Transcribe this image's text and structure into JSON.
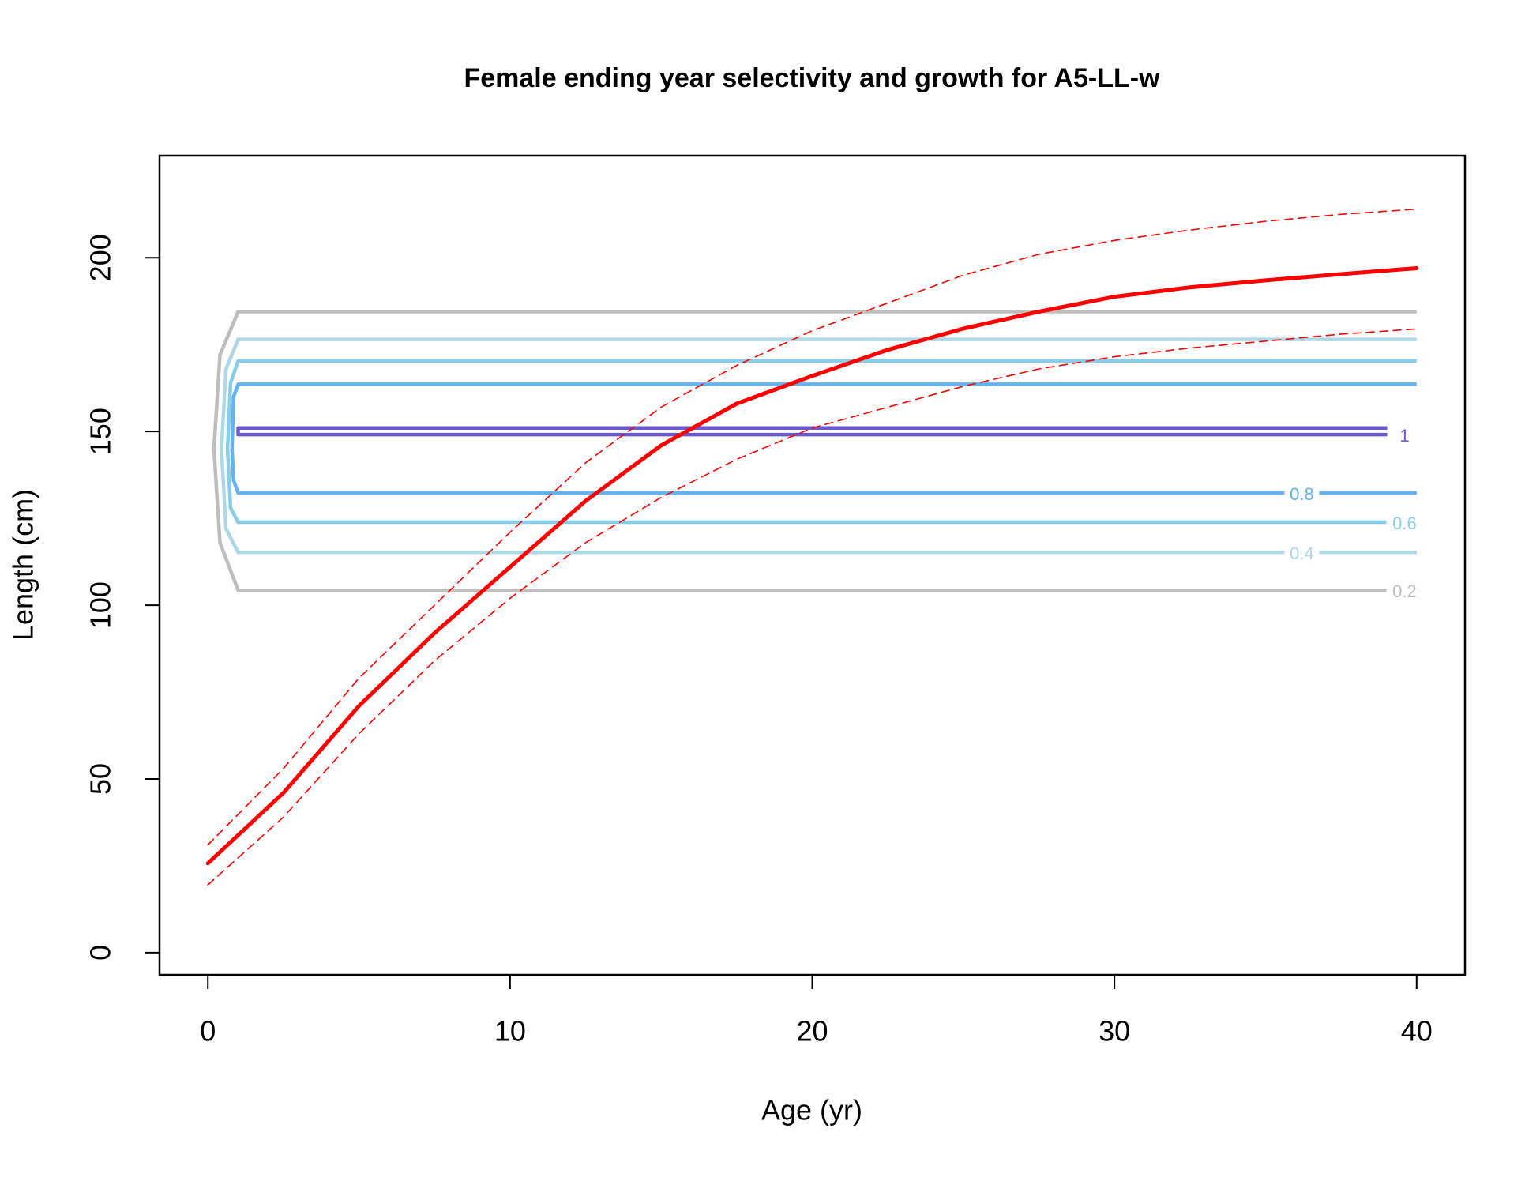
{
  "chart_data": {
    "type": "line",
    "title": "Female ending year selectivity and growth for A5-LL-w",
    "x_label": "Age (yr)",
    "y_label": "Length (cm)",
    "xlim": [
      -1.6,
      41.6
    ],
    "ylim": [
      -6.4,
      229.4
    ],
    "xticks": [
      0,
      10,
      20,
      30,
      40
    ],
    "yticks": [
      0,
      50,
      100,
      150,
      200
    ],
    "contours": [
      {
        "level": 0.2,
        "color": "#bebebe",
        "x": [
          40,
          1,
          0.4,
          0.2,
          0.4,
          1,
          39
        ],
        "y": [
          184.5,
          184.5,
          172,
          145,
          118,
          104.3,
          104.3
        ]
      },
      {
        "level": 0.4,
        "color": "#add8e6",
        "x": [
          40,
          1,
          0.6,
          0.45,
          0.6,
          1,
          40
        ],
        "y": [
          176.5,
          176.5,
          168,
          145,
          122,
          115.2,
          115.2
        ]
      },
      {
        "level": 0.6,
        "color": "#87ceeb",
        "x": [
          40,
          1,
          0.75,
          0.65,
          0.75,
          1,
          39
        ],
        "y": [
          170.3,
          170.3,
          164,
          145,
          128,
          123.9,
          123.9
        ]
      },
      {
        "level": 0.8,
        "color": "#63b3f0",
        "x": [
          40,
          1,
          0.85,
          0.8,
          0.85,
          1,
          40
        ],
        "y": [
          163.6,
          163.6,
          160,
          145,
          136,
          132.3,
          132.3
        ]
      },
      {
        "level": 1,
        "color": "#6a5acd",
        "x": [
          40,
          1,
          1,
          39.3
        ],
        "y": [
          151,
          151,
          149.1,
          149.1
        ]
      }
    ],
    "lines": [
      {
        "color": "#ff0000",
        "width": 5,
        "dashed": false,
        "x": [
          0,
          2.5,
          5,
          7.5,
          10,
          12.5,
          15,
          17.5,
          20,
          22.5,
          25,
          27.5,
          30,
          32.5,
          35,
          37.5,
          40
        ],
        "y": [
          25.7,
          46,
          71,
          92,
          111,
          130,
          146,
          158,
          166,
          173.5,
          179.6,
          184.5,
          188.8,
          191.5,
          193.5,
          195.3,
          197
        ]
      },
      {
        "color": "#ff0000",
        "width": 1.6,
        "dashed": true,
        "x": [
          0,
          2.5,
          5,
          7.5,
          10,
          12.5,
          15,
          17.5,
          20,
          22.5,
          25,
          27.5,
          30,
          32.5,
          35,
          37.5,
          40
        ],
        "y": [
          31,
          53,
          79,
          100,
          121,
          141,
          157,
          169,
          179,
          187,
          195,
          201,
          205,
          208,
          210.5,
          212.5,
          214
        ]
      },
      {
        "color": "#ff0000",
        "width": 1.6,
        "dashed": true,
        "x": [
          0,
          2.5,
          5,
          7.5,
          10,
          12.5,
          15,
          17.5,
          20,
          22.5,
          25,
          27.5,
          30,
          32.5,
          35,
          37.5,
          40
        ],
        "y": [
          19.5,
          39,
          63,
          84,
          102,
          118,
          131,
          142,
          151,
          157,
          163,
          168,
          171.5,
          174,
          176,
          178,
          179.5
        ]
      }
    ]
  }
}
